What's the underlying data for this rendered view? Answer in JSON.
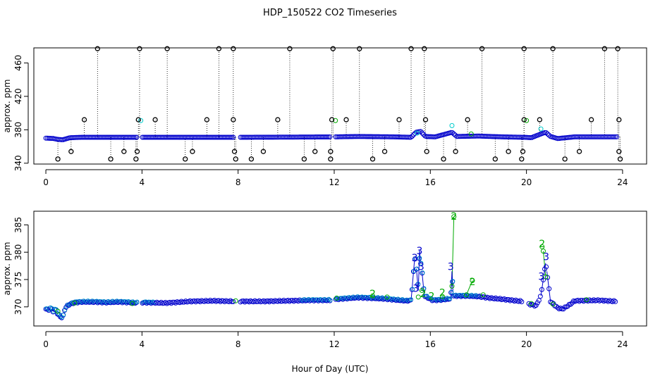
{
  "chart_data": [
    {
      "type": "scatter",
      "title": "HDP_150522  CO2 Timeseries",
      "xlabel": "",
      "ylabel": "approx. ppm",
      "xlim": [
        -0.5,
        25
      ],
      "ylim": [
        339,
        478
      ],
      "xticks": [
        0,
        4,
        8,
        12,
        16,
        20,
        24
      ],
      "yticks": [
        340,
        380,
        420,
        460
      ],
      "xtick_labels": [
        "0",
        "4",
        "8",
        "12",
        "16",
        "20",
        "24"
      ],
      "ytick_labels": [
        "340",
        "380",
        "420",
        "460"
      ],
      "baseline_trace": [
        [
          0,
          370
        ],
        [
          0.3,
          369.6
        ],
        [
          0.5,
          368.5
        ],
        [
          0.7,
          368
        ],
        [
          1.0,
          370.5
        ],
        [
          1.5,
          371
        ],
        [
          3.8,
          371
        ],
        [
          4.0,
          371
        ],
        [
          8,
          371
        ],
        [
          10,
          371.2
        ],
        [
          12.0,
          371.5
        ],
        [
          13.0,
          372
        ],
        [
          14.5,
          371.5
        ],
        [
          15.2,
          371
        ],
        [
          15.4,
          377
        ],
        [
          15.6,
          378
        ],
        [
          15.8,
          372
        ],
        [
          16.2,
          371.5
        ],
        [
          16.9,
          377
        ],
        [
          17.1,
          372
        ],
        [
          18,
          372.5
        ],
        [
          19,
          371.5
        ],
        [
          19.9,
          371
        ],
        [
          20.2,
          370.5
        ],
        [
          20.6,
          375
        ],
        [
          20.8,
          377
        ],
        [
          21.0,
          372
        ],
        [
          21.3,
          369.5
        ],
        [
          22,
          371.5
        ],
        [
          23,
          371.5
        ],
        [
          23.8,
          371.5
        ]
      ],
      "high_spikes": [
        2.15,
        3.9,
        5.05,
        7.2,
        7.8,
        10.15,
        11.95,
        13.05,
        15.2,
        15.75,
        18.15,
        19.9,
        21.1,
        23.25,
        23.8
      ],
      "mid_points": [
        1.6,
        3.85,
        4.55,
        6.7,
        7.8,
        9.65,
        11.9,
        12.5,
        14.7,
        15.8,
        17.55,
        19.9,
        20.55,
        22.7,
        23.85
      ],
      "low_points_354": [
        1.05,
        3.25,
        3.8,
        6.1,
        7.85,
        9.05,
        11.2,
        11.85,
        14.1,
        15.85,
        17.05,
        19.25,
        19.85,
        22.2,
        23.85
      ],
      "low_points_345": [
        0.5,
        2.7,
        3.75,
        5.8,
        7.9,
        8.55,
        10.75,
        11.85,
        13.6,
        16.55,
        18.7,
        19.8,
        21.6,
        23.9
      ],
      "mid_level": 392,
      "high_level": 477,
      "low_level_a": 354,
      "low_level_b": 345,
      "colors": {
        "series_1": "#0000cc",
        "series_2": "#00aa00",
        "series_3": "#00cccc",
        "outliers": "#000000"
      }
    },
    {
      "type": "scatter",
      "title": "",
      "xlabel": "Hour of Day (UTC)",
      "ylabel": "approx. ppm",
      "xlim": [
        -0.5,
        25
      ],
      "ylim": [
        366.5,
        387.5
      ],
      "xticks": [
        0,
        4,
        8,
        12,
        16,
        20,
        24
      ],
      "yticks": [
        370,
        375,
        380,
        385
      ],
      "xtick_labels": [
        "0",
        "4",
        "8",
        "12",
        "16",
        "20",
        "24"
      ],
      "ytick_labels": [
        "370",
        "375",
        "380",
        "385"
      ],
      "series": [
        {
          "name": "3",
          "color": "#0000cc",
          "points": [
            [
              0,
              369.6
            ],
            [
              0.1,
              369.4
            ],
            [
              0.2,
              369.8
            ],
            [
              0.3,
              369.2
            ],
            [
              0.4,
              369.6
            ],
            [
              0.5,
              368.6
            ],
            [
              0.6,
              368.2
            ],
            [
              0.7,
              368
            ],
            [
              0.8,
              369.8
            ],
            [
              0.9,
              370.2
            ],
            [
              1.0,
              370.5
            ],
            [
              1.2,
              370.8
            ],
            [
              1.5,
              370.9
            ],
            [
              2.0,
              370.9
            ],
            [
              2.5,
              370.8
            ],
            [
              3.0,
              370.9
            ],
            [
              3.5,
              370.8
            ],
            [
              3.8,
              370.7
            ],
            [
              4.0,
              370.8
            ],
            [
              5,
              370.7
            ],
            [
              6,
              371
            ],
            [
              7,
              371.1
            ],
            [
              7.8,
              371
            ],
            [
              8.1,
              371
            ],
            [
              9,
              371
            ],
            [
              10,
              371.1
            ],
            [
              11,
              371.2
            ],
            [
              11.9,
              371.2
            ],
            [
              12.1,
              371.4
            ],
            [
              13,
              371.7
            ],
            [
              14,
              371.5
            ],
            [
              15,
              371.1
            ],
            [
              15.2,
              371.2
            ],
            [
              15.35,
              379
            ],
            [
              15.42,
              377
            ],
            [
              15.5,
              373
            ],
            [
              15.55,
              380.3
            ],
            [
              15.6,
              378
            ],
            [
              15.65,
              376.5
            ],
            [
              15.75,
              372
            ],
            [
              16.1,
              371.2
            ],
            [
              16.5,
              371.3
            ],
            [
              16.85,
              371.5
            ],
            [
              16.9,
              376.5
            ],
            [
              16.95,
              372
            ],
            [
              17.5,
              372
            ],
            [
              18,
              371.9
            ],
            [
              18.5,
              371.6
            ],
            [
              19,
              371.4
            ],
            [
              19.8,
              371
            ],
            [
              20.1,
              370.5
            ],
            [
              20.4,
              370.2
            ],
            [
              20.6,
              372
            ],
            [
              20.7,
              375
            ],
            [
              20.8,
              378
            ],
            [
              20.85,
              376.5
            ],
            [
              21.0,
              371
            ],
            [
              21.3,
              369.8
            ],
            [
              21.5,
              369.6
            ],
            [
              21.8,
              370.4
            ],
            [
              22,
              371.1
            ],
            [
              23,
              371.2
            ],
            [
              23.7,
              371
            ]
          ]
        },
        {
          "name": "2",
          "color": "#00aa00",
          "points": [
            [
              0.5,
              369.2
            ],
            [
              1.2,
              370.7
            ],
            [
              3.6,
              370.6
            ],
            [
              7.9,
              371.1
            ],
            [
              12.1,
              371.6
            ],
            [
              13.6,
              372
            ],
            [
              14.2,
              371.8
            ],
            [
              15.5,
              371.8
            ],
            [
              15.65,
              373
            ],
            [
              16.5,
              371.9
            ],
            [
              16.9,
              373.8
            ],
            [
              16.98,
              386.5
            ],
            [
              17.5,
              372.2
            ],
            [
              17.75,
              374.8
            ],
            [
              18.2,
              372.2
            ],
            [
              20.2,
              370.6
            ],
            [
              20.65,
              381
            ],
            [
              20.7,
              380.2
            ],
            [
              20.8,
              375.5
            ],
            [
              21.1,
              370.5
            ],
            [
              22.5,
              371.3
            ]
          ]
        }
      ],
      "spike_labels": [
        {
          "label": "3",
          "x": 15.35,
          "y": 379,
          "color": "#0000cc"
        },
        {
          "label": "3",
          "x": 15.55,
          "y": 380.3,
          "color": "#0000cc"
        },
        {
          "label": "3",
          "x": 15.62,
          "y": 377.4,
          "color": "#0000cc"
        },
        {
          "label": "3",
          "x": 15.4,
          "y": 373.4,
          "color": "#0000cc"
        },
        {
          "label": "3",
          "x": 16.85,
          "y": 377.4,
          "color": "#0000cc"
        },
        {
          "label": "3",
          "x": 20.62,
          "y": 375.6,
          "color": "#0000cc"
        },
        {
          "label": "3",
          "x": 20.82,
          "y": 379.2,
          "color": "#0000cc"
        },
        {
          "label": "2",
          "x": 16.98,
          "y": 386.6,
          "color": "#00aa00"
        },
        {
          "label": "2",
          "x": 17.75,
          "y": 374.6,
          "color": "#00aa00"
        },
        {
          "label": "2",
          "x": 20.65,
          "y": 381.6,
          "color": "#00aa00"
        },
        {
          "label": "2",
          "x": 16.5,
          "y": 372.6,
          "color": "#00aa00"
        },
        {
          "label": "2",
          "x": 15.7,
          "y": 372.4,
          "color": "#00aa00"
        },
        {
          "label": "2",
          "x": 13.6,
          "y": 372.4,
          "color": "#00aa00"
        },
        {
          "label": "2",
          "x": 16.05,
          "y": 372.0,
          "color": "#00aa00"
        }
      ]
    }
  ]
}
